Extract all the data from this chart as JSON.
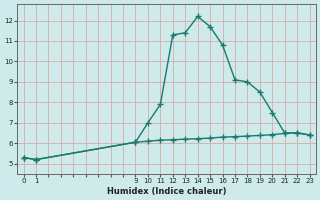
{
  "xlabel": "Humidex (Indice chaleur)",
  "xlim": [
    -0.5,
    23.5
  ],
  "ylim": [
    4.5,
    12.8
  ],
  "yticks": [
    5,
    6,
    7,
    8,
    9,
    10,
    11,
    12
  ],
  "xticks": [
    0,
    1,
    9,
    10,
    11,
    12,
    13,
    14,
    15,
    16,
    17,
    18,
    19,
    20,
    21,
    22,
    23
  ],
  "background_color": "#ceeaea",
  "grid_color_main": "#b8d8d8",
  "grid_color_red": "#d8aaaa",
  "line_color": "#1a7a6e",
  "line1_x": [
    0,
    1,
    9,
    10,
    11,
    12,
    13,
    14,
    15,
    16,
    17,
    18,
    19,
    20,
    21,
    22,
    23
  ],
  "line1_y": [
    5.3,
    5.2,
    6.05,
    7.0,
    7.9,
    11.3,
    11.4,
    12.2,
    11.7,
    10.8,
    9.1,
    9.0,
    8.5,
    7.5,
    6.5,
    6.5,
    6.4
  ],
  "line2_x": [
    0,
    1,
    9,
    10,
    11,
    12,
    13,
    14,
    15,
    16,
    17,
    18,
    19,
    20,
    21,
    22,
    23
  ],
  "line2_y": [
    5.3,
    5.2,
    6.05,
    6.1,
    6.15,
    6.17,
    6.2,
    6.22,
    6.25,
    6.3,
    6.32,
    6.35,
    6.38,
    6.42,
    6.48,
    6.52,
    6.4
  ],
  "figsize": [
    3.2,
    2.0
  ],
  "dpi": 100
}
